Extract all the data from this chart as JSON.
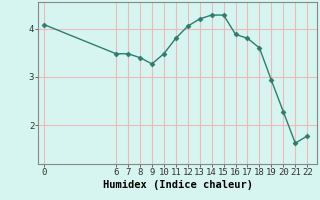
{
  "x": [
    0,
    6,
    7,
    8,
    9,
    10,
    11,
    12,
    13,
    14,
    15,
    16,
    17,
    18,
    19,
    20,
    21,
    22
  ],
  "y": [
    4.08,
    3.48,
    3.48,
    3.4,
    3.27,
    3.48,
    3.8,
    4.05,
    4.2,
    4.28,
    4.28,
    3.88,
    3.8,
    3.6,
    2.93,
    2.28,
    1.63,
    1.78
  ],
  "line_color": "#2d7d6e",
  "marker": "D",
  "marker_size": 2.5,
  "bg_color": "#d6f5f0",
  "grid_color": "#f0b8b8",
  "xlabel": "Humidex (Indice chaleur)",
  "xlabel_fontsize": 7.5,
  "yticks": [
    2,
    3,
    4
  ],
  "xticks": [
    0,
    6,
    7,
    8,
    9,
    10,
    11,
    12,
    13,
    14,
    15,
    16,
    17,
    18,
    19,
    20,
    21,
    22
  ],
  "xlim": [
    -0.5,
    22.8
  ],
  "ylim": [
    1.2,
    4.55
  ],
  "tick_fontsize": 6.5,
  "line_width": 1.0,
  "spine_color": "#888888"
}
